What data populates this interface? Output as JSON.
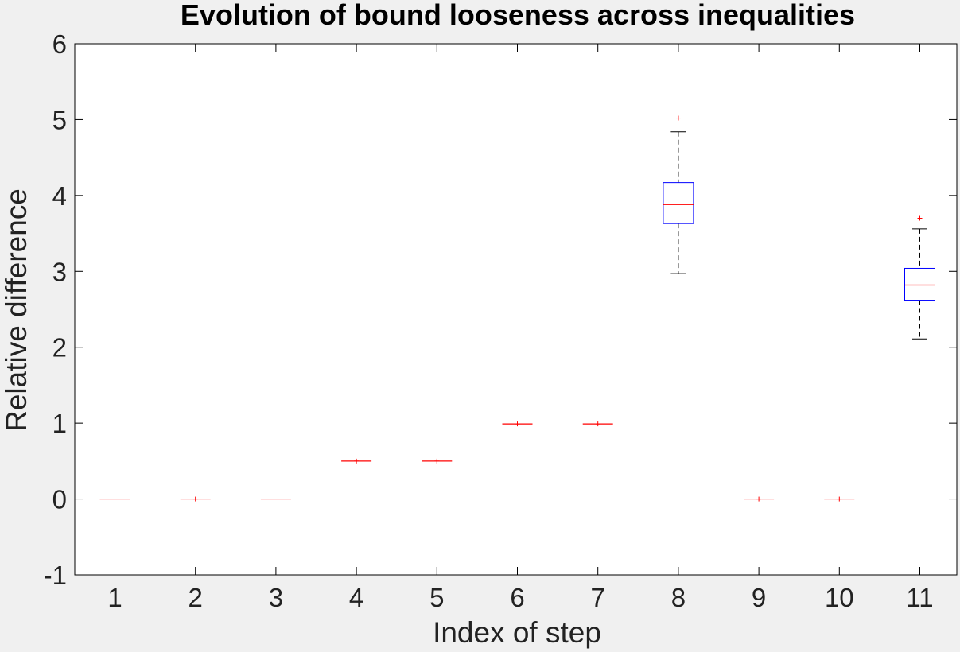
{
  "chart_data": {
    "type": "boxplot",
    "title": "Evolution of bound looseness across inequalities",
    "xlabel": "Index of step",
    "ylabel": "Relative difference",
    "ylim": [
      -1,
      6
    ],
    "yticks": [
      "-1",
      "0",
      "1",
      "2",
      "3",
      "4",
      "5",
      "6"
    ],
    "categories": [
      "1",
      "2",
      "3",
      "4",
      "5",
      "6",
      "7",
      "8",
      "9",
      "10",
      "11"
    ],
    "grid": false,
    "colors": {
      "box": "#0000ff",
      "median": "#ff0000",
      "whisker": "#000000",
      "outlier": "#ff0000"
    },
    "boxes": [
      {
        "category": "1",
        "q1": 0,
        "median": 0,
        "q3": 0,
        "whisker_low": 0,
        "whisker_high": 0,
        "outliers": []
      },
      {
        "category": "2",
        "q1": 0,
        "median": 0,
        "q3": 0,
        "whisker_low": 0,
        "whisker_high": 0,
        "outliers": [
          0
        ]
      },
      {
        "category": "3",
        "q1": 0,
        "median": 0,
        "q3": 0,
        "whisker_low": 0,
        "whisker_high": 0,
        "outliers": []
      },
      {
        "category": "4",
        "q1": 0.5,
        "median": 0.5,
        "q3": 0.5,
        "whisker_low": 0.5,
        "whisker_high": 0.5,
        "outliers": [
          0.5
        ]
      },
      {
        "category": "5",
        "q1": 0.5,
        "median": 0.5,
        "q3": 0.5,
        "whisker_low": 0.5,
        "whisker_high": 0.5,
        "outliers": [
          0.5
        ]
      },
      {
        "category": "6",
        "q1": 0.99,
        "median": 0.99,
        "q3": 0.99,
        "whisker_low": 0.99,
        "whisker_high": 0.99,
        "outliers": [
          0.99
        ]
      },
      {
        "category": "7",
        "q1": 0.99,
        "median": 0.99,
        "q3": 0.99,
        "whisker_low": 0.99,
        "whisker_high": 0.99,
        "outliers": [
          0.99
        ]
      },
      {
        "category": "8",
        "q1": 3.63,
        "median": 3.88,
        "q3": 4.17,
        "whisker_low": 2.97,
        "whisker_high": 4.84,
        "outliers": [
          5.02
        ]
      },
      {
        "category": "9",
        "q1": 0,
        "median": 0,
        "q3": 0,
        "whisker_low": 0,
        "whisker_high": 0,
        "outliers": [
          0
        ]
      },
      {
        "category": "10",
        "q1": 0,
        "median": 0,
        "q3": 0,
        "whisker_low": 0,
        "whisker_high": 0,
        "outliers": [
          0
        ]
      },
      {
        "category": "11",
        "q1": 2.62,
        "median": 2.82,
        "q3": 3.04,
        "whisker_low": 2.11,
        "whisker_high": 3.56,
        "outliers": [
          3.7
        ]
      }
    ]
  }
}
